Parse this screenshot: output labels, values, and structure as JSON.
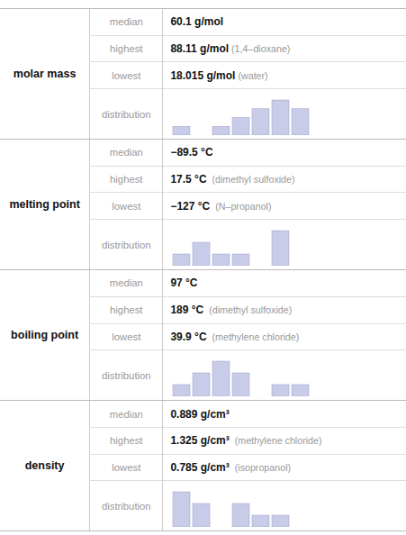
{
  "chart_data": [
    {
      "type": "bar",
      "title": "molar mass",
      "ylabel": "distribution",
      "annotations": [
        {
          "label": "median",
          "text": "60.1 g/mol"
        },
        {
          "label": "highest",
          "text": "88.11 g/mol",
          "note": " (1,4–dioxane)"
        },
        {
          "label": "lowest",
          "text": "18.015 g/mol",
          "note": " (water)"
        }
      ],
      "categories": [
        null,
        null,
        null,
        null,
        null,
        null,
        null,
        null
      ],
      "values": [
        1,
        0,
        1,
        2,
        3,
        4,
        3,
        0
      ],
      "color": "#c8cce8",
      "ylim": [
        0,
        4.72
      ],
      "tick_labels": false
    },
    {
      "type": "bar",
      "title": "melting point",
      "ylabel": "distribution",
      "annotations": [
        {
          "label": "median",
          "text": "−89.5 °C"
        },
        {
          "label": "highest",
          "text": "17.5 °C",
          "note": "  (dimethyl sulfoxide)"
        },
        {
          "label": "lowest",
          "text": "−127 °C",
          "note": "  (N–propanol)"
        }
      ],
      "categories": [
        null,
        null,
        null,
        null,
        null,
        null,
        null,
        null
      ],
      "values": [
        1,
        2,
        1,
        1,
        0,
        3,
        0,
        0
      ],
      "color": "#c8cce8",
      "ylim": [
        0,
        3.54
      ],
      "tick_labels": false
    },
    {
      "type": "bar",
      "title": "boiling point",
      "ylabel": "distribution",
      "annotations": [
        {
          "label": "median",
          "text": "97 °C"
        },
        {
          "label": "highest",
          "text": "189 °C",
          "note": "  (dimethyl sulfoxide)"
        },
        {
          "label": "lowest",
          "text": "39.9 °C",
          "note": "  (methylene chloride)"
        }
      ],
      "categories": [
        null,
        null,
        null,
        null,
        null,
        null,
        null,
        null
      ],
      "values": [
        1,
        2,
        3,
        2,
        0,
        1,
        1,
        0
      ],
      "color": "#c8cce8",
      "ylim": [
        0,
        3.54
      ],
      "tick_labels": false
    },
    {
      "type": "bar",
      "title": "density",
      "ylabel": "distribution",
      "annotations": [
        {
          "label": "median",
          "text": "0.889 g/cm³"
        },
        {
          "label": "highest",
          "text": "1.325 g/cm³",
          "note": "  (methylene chloride)"
        },
        {
          "label": "lowest",
          "text": "0.785 g/cm³",
          "note": "  (isopropanol)"
        }
      ],
      "categories": [
        null,
        null,
        null,
        null,
        null,
        null,
        null,
        null
      ],
      "values": [
        3,
        2,
        0,
        2,
        1,
        1,
        0,
        0
      ],
      "color": "#c8cce8",
      "ylim": [
        0,
        3.54
      ],
      "tick_labels": false
    }
  ]
}
